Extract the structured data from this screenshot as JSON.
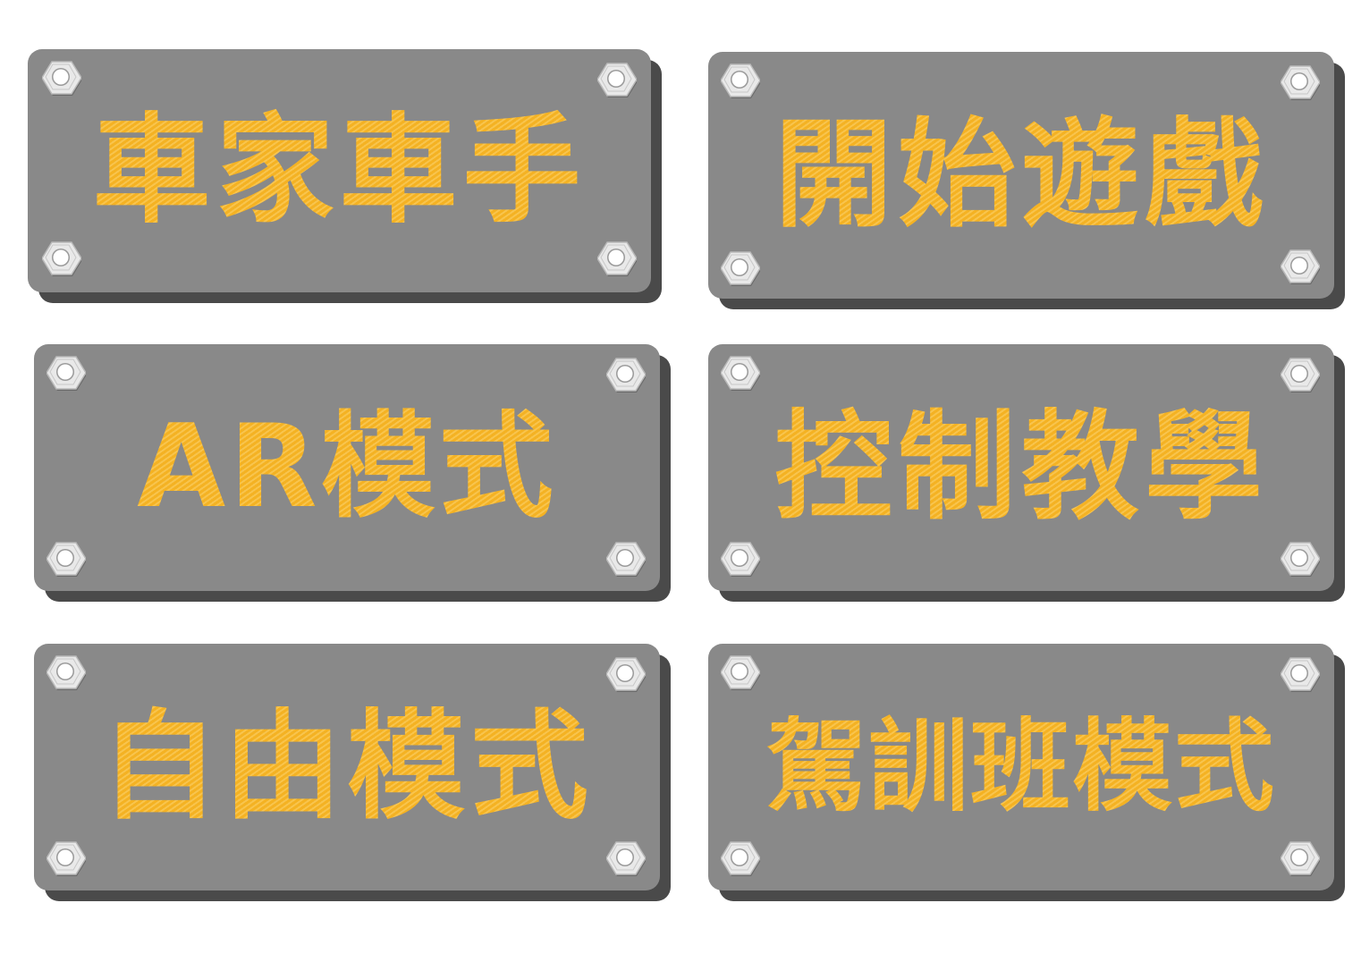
{
  "colors": {
    "plate": "#898989",
    "plate_shadow": "#4a4a4a",
    "text": "#f4b223",
    "bolt": "#e9e9e9"
  },
  "icons": {
    "bolt": "hex-nut-icon"
  },
  "buttons": [
    {
      "label": "車家車手"
    },
    {
      "label": "開始遊戲"
    },
    {
      "label": "AR模式"
    },
    {
      "label": "控制教學"
    },
    {
      "label": "自由模式"
    },
    {
      "label": "駕訓班模式"
    }
  ]
}
